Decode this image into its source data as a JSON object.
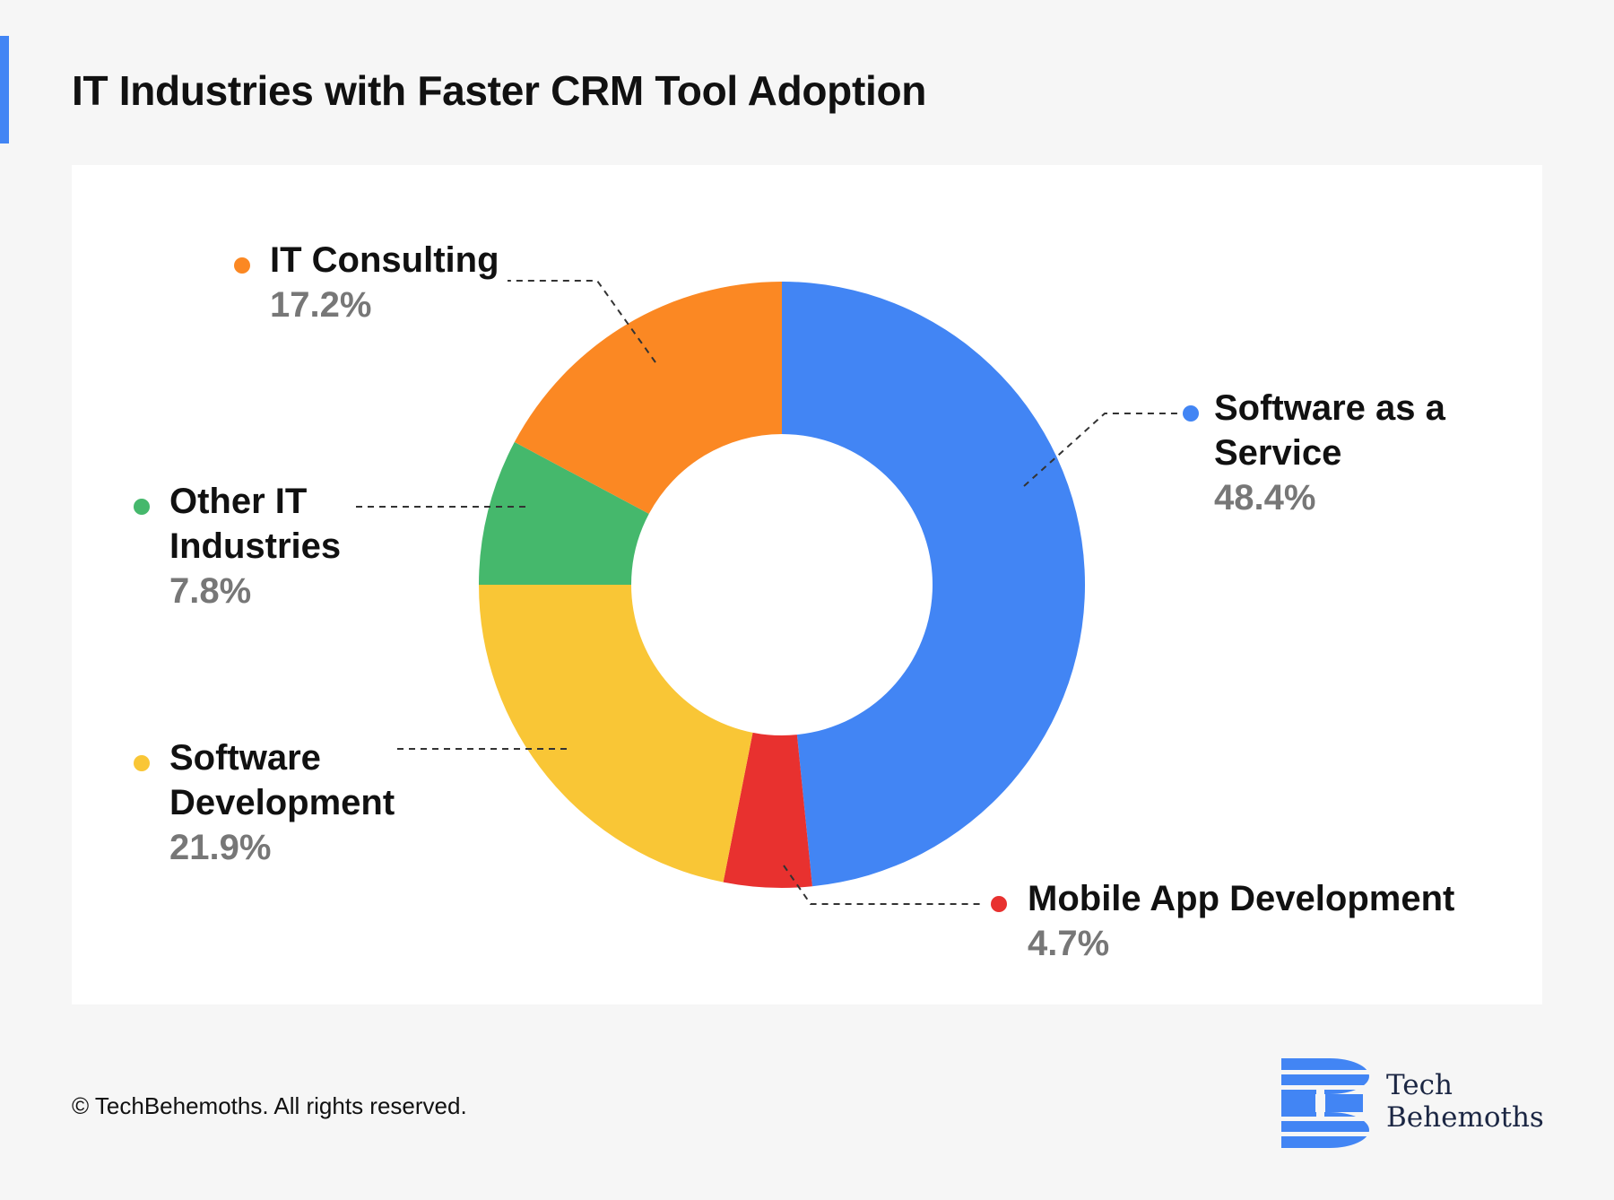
{
  "page": {
    "title": "IT Industries with Faster CRM Tool Adoption",
    "copyright": "© TechBehemoths. All rights reserved.",
    "logo": {
      "line1": "Tech",
      "line2": "Behemoths",
      "icon": "techbehemoths-logo-icon",
      "color": "#4285f4"
    }
  },
  "chart_data": {
    "type": "pie",
    "variant": "donut",
    "title": "IT Industries with Faster CRM Tool Adoption",
    "unit": "%",
    "slices": [
      {
        "name": "Software as a Service",
        "label_lines": [
          "Software as a",
          "Service"
        ],
        "value": 48.4,
        "value_label": "48.4%",
        "color": "#4285f4"
      },
      {
        "name": "Mobile App Development",
        "label_lines": [
          "Mobile App Development"
        ],
        "value": 4.7,
        "value_label": "4.7%",
        "color": "#e8312f"
      },
      {
        "name": "Software Development",
        "label_lines": [
          "Software",
          "Development"
        ],
        "value": 21.9,
        "value_label": "21.9%",
        "color": "#f9c636"
      },
      {
        "name": "Other IT Industries",
        "label_lines": [
          "Other IT",
          "Industries"
        ],
        "value": 7.8,
        "value_label": "7.8%",
        "color": "#45b86c"
      },
      {
        "name": "IT Consulting",
        "label_lines": [
          "IT Consulting"
        ],
        "value": 17.2,
        "value_label": "17.2%",
        "color": "#fb8823"
      }
    ]
  }
}
